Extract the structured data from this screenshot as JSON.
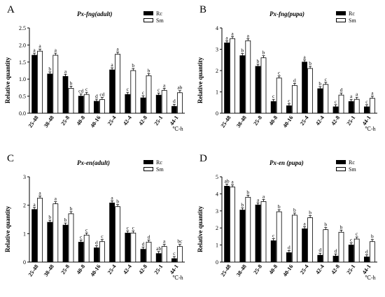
{
  "unit_label": "℃-h",
  "chart_data": [
    {
      "type": "bar",
      "letter": "A",
      "title": "Px-fng(adult)",
      "ylabel": "Relative quantity",
      "ylim": [
        0,
        2.5
      ],
      "yticks": [
        "0.0",
        "0.5",
        "1.0",
        "1.5",
        "2.0",
        "2.5"
      ],
      "categories": [
        "25-48",
        "38-48",
        "25-8",
        "40-8",
        "40-16",
        "25-4",
        "42-4",
        "42-8",
        "25-1",
        "44-1"
      ],
      "series": [
        {
          "name": "Rc",
          "color": "#000000",
          "values": [
            1.7,
            1.15,
            1.08,
            0.5,
            0.35,
            1.27,
            0.55,
            0.45,
            0.53,
            0.2
          ],
          "labels": [
            "a",
            "b",
            "a",
            "cd",
            "d",
            "a",
            "c",
            "c",
            "c",
            "d"
          ]
        },
        {
          "name": "Sm",
          "color": "#ffffff",
          "values": [
            1.82,
            1.7,
            0.73,
            0.55,
            0.4,
            1.73,
            1.25,
            1.1,
            0.67,
            0.6
          ],
          "labels": [
            "a",
            "a",
            "b",
            "c",
            "cd",
            "a",
            "b",
            "b",
            "a",
            "ab"
          ]
        }
      ]
    },
    {
      "type": "bar",
      "letter": "B",
      "title": "Px-fng(pupa)",
      "ylabel": "Relative quantity",
      "ylim": [
        0,
        4
      ],
      "yticks": [
        "0",
        "1",
        "2",
        "3",
        "4"
      ],
      "categories": [
        "25-48",
        "38-48",
        "25-8",
        "40-8",
        "40-16",
        "25-4",
        "42-4",
        "42-8",
        "25-1",
        "44-1"
      ],
      "series": [
        {
          "name": "Rc",
          "color": "#000000",
          "values": [
            3.3,
            2.7,
            2.2,
            0.55,
            0.35,
            2.4,
            1.15,
            0.3,
            0.55,
            0.3
          ],
          "labels": [
            "a",
            "b",
            "b",
            "c",
            "c",
            "a",
            "b",
            "c",
            "a",
            "c"
          ]
        },
        {
          "name": "Sm",
          "color": "#ffffff",
          "values": [
            3.5,
            3.4,
            2.6,
            1.65,
            1.3,
            2.1,
            1.35,
            0.85,
            0.65,
            0.7
          ],
          "labels": [
            "a",
            "a",
            "b",
            "c",
            "d",
            "b",
            "c",
            "d",
            "a",
            "a"
          ]
        }
      ]
    },
    {
      "type": "bar",
      "letter": "C",
      "title": "Px-en(adult)",
      "ylabel": "Relative quantity",
      "ylim": [
        0,
        3
      ],
      "yticks": [
        "0",
        "1",
        "2",
        "3"
      ],
      "categories": [
        "25-48",
        "38-48",
        "25-8",
        "40-8",
        "40-16",
        "25-4",
        "42-4",
        "42-8",
        "25-1",
        "44-1"
      ],
      "series": [
        {
          "name": "Rc",
          "color": "#000000",
          "values": [
            1.85,
            1.4,
            1.3,
            0.7,
            0.5,
            2.08,
            1.02,
            0.45,
            0.3,
            0.12
          ],
          "labels": [
            "a",
            "b",
            "b",
            "c",
            "d",
            "a",
            "c",
            "d",
            "ab",
            "c"
          ]
        },
        {
          "name": "Sm",
          "color": "#ffffff",
          "values": [
            2.25,
            2.05,
            1.7,
            0.95,
            0.72,
            1.95,
            1.02,
            0.7,
            0.55,
            0.55
          ],
          "labels": [
            "a",
            "a",
            "b",
            "c",
            "c",
            "b",
            "c",
            "d",
            "a",
            "bc"
          ]
        }
      ]
    },
    {
      "type": "bar",
      "letter": "D",
      "title": "Px-en (pupa)",
      "ylabel": "Relative quantity",
      "ylim": [
        0,
        5
      ],
      "yticks": [
        "0",
        "1",
        "2",
        "3",
        "4",
        "5"
      ],
      "categories": [
        "25-48",
        "38-48",
        "25-8",
        "40-8",
        "40-16",
        "25-4",
        "42-4",
        "42-8",
        "25-1",
        "44-1"
      ],
      "series": [
        {
          "name": "Rc",
          "color": "#000000",
          "values": [
            4.45,
            3.05,
            3.35,
            1.25,
            0.55,
            1.95,
            0.4,
            0.35,
            1.0,
            0.3
          ],
          "labels": [
            "ab",
            "b",
            "a",
            "c",
            "d",
            "a",
            "d",
            "d",
            "c",
            "d"
          ]
        },
        {
          "name": "Sm",
          "color": "#ffffff",
          "values": [
            4.4,
            3.8,
            3.55,
            2.95,
            2.75,
            2.6,
            1.9,
            1.75,
            1.35,
            1.2
          ],
          "labels": [
            "a",
            "b",
            "a",
            "b",
            "b",
            "b",
            "b",
            "b",
            "c",
            "b"
          ]
        }
      ]
    }
  ]
}
